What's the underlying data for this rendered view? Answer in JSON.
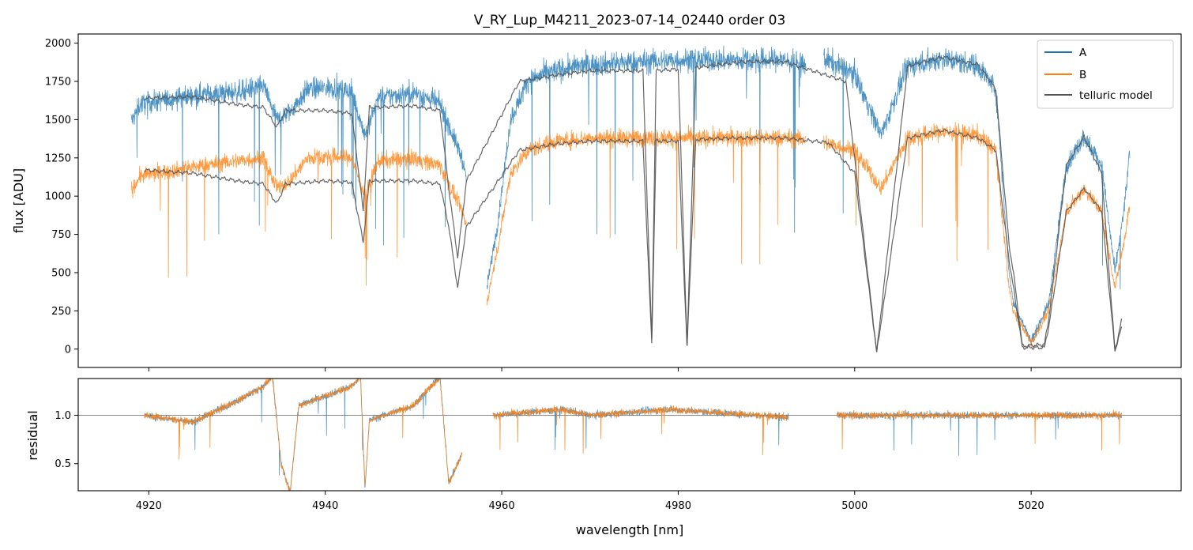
{
  "figure_title": "V_RY_Lup_M4211_2023-07-14_02440  order 03",
  "colors": {
    "A": "#1f77b4",
    "B": "#ff7f0e",
    "telluric": "#555555",
    "residual_ref": "#777777"
  },
  "chart_data": [
    {
      "type": "line",
      "panel": "flux",
      "title": "V_RY_Lup_M4211_2023-07-14_02440  order 03",
      "xlabel": "",
      "ylabel": "flux [ADU]",
      "xlim": [
        4912,
        5037
      ],
      "ylim": [
        -120,
        2060
      ],
      "x_ticks": [
        4920,
        4940,
        4960,
        4980,
        5000,
        5020
      ],
      "y_ticks": [
        0,
        250,
        500,
        750,
        1000,
        1250,
        1500,
        1750,
        2000
      ],
      "y_tick_labels": [
        "0",
        "250",
        "500",
        "750",
        "1000",
        "1250",
        "1500",
        "1750",
        "2000"
      ],
      "legend": {
        "position": "top-right",
        "entries": [
          "A",
          "B",
          "telluric model"
        ]
      },
      "segments": [
        [
          4918.0,
          4956.0
        ],
        [
          4958.3,
          4994.5
        ],
        [
          4996.5,
          5031.2
        ]
      ],
      "continuum": [
        {
          "name": "A",
          "points": [
            [
              4918.2,
              1500
            ],
            [
              4919,
              1600
            ],
            [
              4925,
              1660
            ],
            [
              4930,
              1680
            ],
            [
              4933,
              1720
            ],
            [
              4934.5,
              1500
            ],
            [
              4936,
              1550
            ],
            [
              4938,
              1700
            ],
            [
              4941,
              1710
            ],
            [
              4943,
              1680
            ],
            [
              4944.5,
              1400
            ],
            [
              4946,
              1640
            ],
            [
              4950,
              1680
            ],
            [
              4953,
              1600
            ],
            [
              4955.5,
              1250
            ],
            [
              4956,
              1100
            ],
            [
              4958.3,
              400
            ],
            [
              4959.5,
              800
            ],
            [
              4961,
              1500
            ],
            [
              4963,
              1760
            ],
            [
              4966,
              1820
            ],
            [
              4970,
              1860
            ],
            [
              4980,
              1890
            ],
            [
              4992,
              1890
            ],
            [
              4994.5,
              1850
            ],
            [
              4996.5,
              1900
            ],
            [
              5000,
              1800
            ],
            [
              5003,
              1400
            ],
            [
              5006,
              1850
            ],
            [
              5010,
              1900
            ],
            [
              5014,
              1850
            ],
            [
              5016,
              1700
            ],
            [
              5017.5,
              500
            ],
            [
              5018,
              300
            ],
            [
              5020,
              50
            ],
            [
              5022,
              300
            ],
            [
              5024,
              1200
            ],
            [
              5026,
              1390
            ],
            [
              5028,
              1200
            ],
            [
              5029.5,
              500
            ],
            [
              5030.5,
              900
            ],
            [
              5031.2,
              1300
            ]
          ]
        },
        {
          "name": "B",
          "points": [
            [
              4918.2,
              1050
            ],
            [
              4919,
              1130
            ],
            [
              4925,
              1190
            ],
            [
              4930,
              1230
            ],
            [
              4933,
              1250
            ],
            [
              4934.5,
              1050
            ],
            [
              4936,
              1100
            ],
            [
              4938,
              1250
            ],
            [
              4941,
              1260
            ],
            [
              4943,
              1250
            ],
            [
              4944.5,
              1000
            ],
            [
              4946,
              1230
            ],
            [
              4950,
              1250
            ],
            [
              4953,
              1200
            ],
            [
              4955.5,
              900
            ],
            [
              4956,
              800
            ],
            [
              4958.3,
              300
            ],
            [
              4959.5,
              650
            ],
            [
              4961,
              1150
            ],
            [
              4963,
              1300
            ],
            [
              4966,
              1360
            ],
            [
              4970,
              1380
            ],
            [
              4980,
              1380
            ],
            [
              4992,
              1380
            ],
            [
              4994.5,
              1370
            ],
            [
              4996.5,
              1350
            ],
            [
              5000,
              1300
            ],
            [
              5003,
              1050
            ],
            [
              5006,
              1380
            ],
            [
              5010,
              1420
            ],
            [
              5014,
              1400
            ],
            [
              5016,
              1300
            ],
            [
              5017.5,
              400
            ],
            [
              5018,
              250
            ],
            [
              5020,
              40
            ],
            [
              5022,
              250
            ],
            [
              5024,
              900
            ],
            [
              5026,
              1050
            ],
            [
              5028,
              900
            ],
            [
              5029.5,
              400
            ],
            [
              5030.5,
              700
            ],
            [
              5031.2,
              950
            ]
          ]
        }
      ],
      "series": [
        {
          "name": "A",
          "noise": 70
        },
        {
          "name": "B",
          "noise": 65
        },
        {
          "name": "telluric model",
          "noise": 0
        }
      ],
      "telluric_model": [
        {
          "base": "A",
          "points": [
            [
              4919.5,
              1640
            ],
            [
              4925,
              1650
            ],
            [
              4930,
              1600
            ],
            [
              4933,
              1580
            ],
            [
              4934.5,
              1450
            ],
            [
              4935.5,
              1560
            ],
            [
              4940,
              1560
            ],
            [
              4943,
              1540
            ],
            [
              4944.3,
              900
            ],
            [
              4945,
              1580
            ],
            [
              4950,
              1590
            ],
            [
              4953,
              1560
            ],
            [
              4954,
              1050
            ],
            [
              4955,
              600
            ],
            [
              4956,
              1100
            ],
            [
              4962,
              1750
            ],
            [
              4966,
              1790
            ],
            [
              4970,
              1820
            ],
            [
              4976,
              1820
            ],
            [
              4977,
              60
            ],
            [
              4977.5,
              1820
            ],
            [
              4980,
              1830
            ],
            [
              4981,
              20
            ],
            [
              4982,
              1840
            ],
            [
              4986,
              1870
            ],
            [
              4988,
              1880
            ],
            [
              4992,
              1880
            ],
            [
              4999,
              1750
            ],
            [
              5002.5,
              -20
            ],
            [
              5006,
              1850
            ],
            [
              5010,
              1910
            ],
            [
              5014,
              1860
            ],
            [
              5016,
              1700
            ],
            [
              5017.5,
              680
            ],
            [
              5018,
              500
            ],
            [
              5019,
              20
            ],
            [
              5021.5,
              30
            ],
            [
              5022,
              200
            ],
            [
              5024,
              1200
            ],
            [
              5026,
              1390
            ],
            [
              5028,
              1150
            ],
            [
              5029.5,
              -10
            ],
            [
              5030.3,
              200
            ]
          ]
        },
        {
          "base": "B",
          "points": [
            [
              4919.5,
              1170
            ],
            [
              4925,
              1150
            ],
            [
              4930,
              1100
            ],
            [
              4933,
              1080
            ],
            [
              4934.5,
              950
            ],
            [
              4935.5,
              1080
            ],
            [
              4940,
              1100
            ],
            [
              4943,
              1090
            ],
            [
              4944.3,
              700
            ],
            [
              4945,
              1100
            ],
            [
              4950,
              1100
            ],
            [
              4953,
              1080
            ],
            [
              4954,
              800
            ],
            [
              4955,
              400
            ],
            [
              4956,
              800
            ],
            [
              4962,
              1300
            ],
            [
              4966,
              1340
            ],
            [
              4970,
              1360
            ],
            [
              4976,
              1360
            ],
            [
              4977,
              40
            ],
            [
              4977.5,
              1360
            ],
            [
              4980,
              1360
            ],
            [
              4981,
              15
            ],
            [
              4982,
              1370
            ],
            [
              4986,
              1380
            ],
            [
              4988,
              1380
            ],
            [
              4992,
              1380
            ],
            [
              4997,
              1350
            ],
            [
              5000,
              1150
            ],
            [
              5002.5,
              -20
            ],
            [
              5006,
              1380
            ],
            [
              5010,
              1430
            ],
            [
              5014,
              1380
            ],
            [
              5016,
              1300
            ],
            [
              5017.5,
              580
            ],
            [
              5018,
              400
            ],
            [
              5019,
              10
            ],
            [
              5021.5,
              10
            ],
            [
              5022,
              150
            ],
            [
              5024,
              900
            ],
            [
              5026,
              1050
            ],
            [
              5028,
              900
            ],
            [
              5029.5,
              -10
            ],
            [
              5030.3,
              150
            ]
          ]
        }
      ]
    },
    {
      "type": "line",
      "panel": "residual",
      "xlabel": "wavelength [nm]",
      "ylabel": "residual",
      "xlim": [
        4912,
        5037
      ],
      "ylim": [
        0.22,
        1.38
      ],
      "x_ticks": [
        4920,
        4940,
        4960,
        4980,
        5000,
        5020
      ],
      "x_tick_labels": [
        "4920",
        "4940",
        "4960",
        "4980",
        "5000",
        "5020"
      ],
      "y_ticks": [
        0.5,
        1.0
      ],
      "y_tick_labels": [
        "0.5",
        "1.0"
      ],
      "reference_line": 1.0,
      "segments": [
        [
          4919.5,
          4955.5
        ],
        [
          4959.0,
          4992.5
        ],
        [
          4998.0,
          5030.3
        ]
      ],
      "trend": [
        [
          4919.5,
          1.0
        ],
        [
          4925,
          0.93
        ],
        [
          4930,
          1.15
        ],
        [
          4933,
          1.3
        ],
        [
          4934,
          1.4
        ],
        [
          4935,
          0.5
        ],
        [
          4936,
          0.2
        ],
        [
          4937,
          1.1
        ],
        [
          4943,
          1.3
        ],
        [
          4944,
          1.4
        ],
        [
          4944.5,
          0.25
        ],
        [
          4945,
          0.95
        ],
        [
          4950,
          1.1
        ],
        [
          4953,
          1.4
        ],
        [
          4954,
          0.3
        ],
        [
          4955.5,
          0.6
        ],
        [
          4959,
          1.0
        ],
        [
          4967,
          1.06
        ],
        [
          4970,
          1.0
        ],
        [
          4979,
          1.06
        ],
        [
          4992.5,
          0.98
        ],
        [
          4998,
          1.0
        ],
        [
          5030.3,
          1.0
        ]
      ]
    }
  ]
}
